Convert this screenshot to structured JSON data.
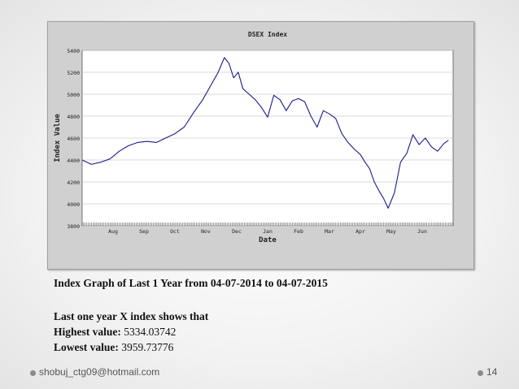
{
  "chart_data": {
    "type": "line",
    "title": "DSEX Index",
    "xlabel": "Date",
    "ylabel": "Index Value",
    "ylim": [
      3800,
      5400
    ],
    "yticks": [
      3800,
      4000,
      4200,
      4400,
      4600,
      4800,
      5000,
      5200,
      5400
    ],
    "x_tick_labels": [
      "Aug",
      "Sep",
      "Oct",
      "Nov",
      "Dec",
      "Jan",
      "Feb",
      "Mar",
      "Apr",
      "May",
      "Jun"
    ],
    "grid": true,
    "series": [
      {
        "color": "#1a1a8c",
        "x": [
          0.0,
          0.3,
          0.6,
          0.9,
          1.2,
          1.5,
          1.8,
          2.1,
          2.4,
          2.7,
          3.0,
          3.3,
          3.6,
          3.9,
          4.2,
          4.4,
          4.6,
          4.75,
          4.9,
          5.05,
          5.2,
          5.4,
          5.6,
          5.8,
          6.0,
          6.2,
          6.4,
          6.6,
          6.8,
          7.0,
          7.2,
          7.4,
          7.6,
          7.8,
          8.0,
          8.2,
          8.4,
          8.6,
          8.8,
          9.0,
          9.15,
          9.3,
          9.45,
          9.6,
          9.75,
          9.9,
          10.1,
          10.3,
          10.5,
          10.7,
          10.9,
          11.1,
          11.3,
          11.5,
          11.7,
          11.85
        ],
        "values": [
          4400,
          4360,
          4380,
          4410,
          4480,
          4530,
          4560,
          4570,
          4560,
          4600,
          4640,
          4700,
          4830,
          4950,
          5100,
          5200,
          5334,
          5280,
          5150,
          5200,
          5050,
          5000,
          4950,
          4880,
          4790,
          4990,
          4950,
          4850,
          4940,
          4960,
          4930,
          4800,
          4700,
          4850,
          4820,
          4780,
          4640,
          4560,
          4500,
          4450,
          4380,
          4320,
          4200,
          4120,
          4050,
          3960,
          4100,
          4380,
          4460,
          4630,
          4540,
          4600,
          4520,
          4480,
          4550,
          4580
        ]
      }
    ]
  },
  "caption": "Index Graph of Last 1 Year from 04-07-2014 to 04-07-2015",
  "summary_heading": "Last one year X index shows that",
  "highest_label": "Highest value:",
  "highest_value": "5334.03742",
  "lowest_label": "Lowest value:",
  "lowest_value": "3959.73776",
  "footer": {
    "email": "shobuj_ctg09@hotmail.com",
    "page_number": "14"
  }
}
